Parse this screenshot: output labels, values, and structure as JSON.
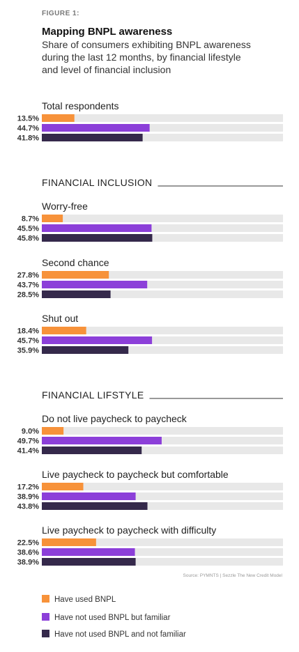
{
  "figure_label": "FIGURE 1:",
  "title": "Mapping BNPL awareness",
  "subtitle_lines": [
    "Share of consumers exhibiting BNPL awareness",
    "during the last 12 months, by financial lifestyle",
    "and level of financial inclusion"
  ],
  "source": "Source: PYMNTS | Sezzle    The New Credit Model",
  "colors": {
    "used": "#f7923a",
    "familiar": "#8c3fd9",
    "not_familiar": "#35294b",
    "track": "#e8e8e8",
    "rule": "#333333"
  },
  "chart_data": {
    "type": "bar",
    "orientation": "horizontal",
    "xlim": [
      0,
      100
    ],
    "unit": "%",
    "series": [
      {
        "name": "Have used BNPL",
        "key": "used"
      },
      {
        "name": "Have not used BNPL but familiar",
        "key": "familiar"
      },
      {
        "name": "Have not used BNPL and not familiar",
        "key": "not_familiar"
      }
    ],
    "sections": [
      {
        "heading": "",
        "groups": [
          {
            "label": "Total respondents",
            "values": [
              13.5,
              44.7,
              41.8
            ],
            "labels": [
              "13.5%",
              "44.7%",
              "41.8%"
            ]
          }
        ]
      },
      {
        "heading": "FINANCIAL INCLUSION",
        "groups": [
          {
            "label": "Worry-free",
            "values": [
              8.7,
              45.5,
              45.8
            ],
            "labels": [
              "8.7%",
              "45.5%",
              "45.8%"
            ]
          },
          {
            "label": "Second chance",
            "values": [
              27.8,
              43.7,
              28.5
            ],
            "labels": [
              "27.8%",
              "43.7%",
              "28.5%"
            ]
          },
          {
            "label": "Shut out",
            "values": [
              18.4,
              45.7,
              35.9
            ],
            "labels": [
              "18.4%",
              "45.7%",
              "35.9%"
            ]
          }
        ]
      },
      {
        "heading": "FINANCIAL LIFSTYLE",
        "groups": [
          {
            "label": "Do not live paycheck to paycheck",
            "values": [
              9.0,
              49.7,
              41.4
            ],
            "labels": [
              "9.0%",
              "49.7%",
              "41.4%"
            ]
          },
          {
            "label": "Live paycheck to paycheck but comfortable",
            "values": [
              17.2,
              38.9,
              43.8
            ],
            "labels": [
              "17.2%",
              "38.9%",
              "43.8%"
            ]
          },
          {
            "label": "Live paycheck to paycheck with difficulty",
            "values": [
              22.5,
              38.6,
              38.9
            ],
            "labels": [
              "22.5%",
              "38.6%",
              "38.9%"
            ]
          }
        ]
      }
    ],
    "legend": {
      "placement": "bottom-left"
    }
  }
}
